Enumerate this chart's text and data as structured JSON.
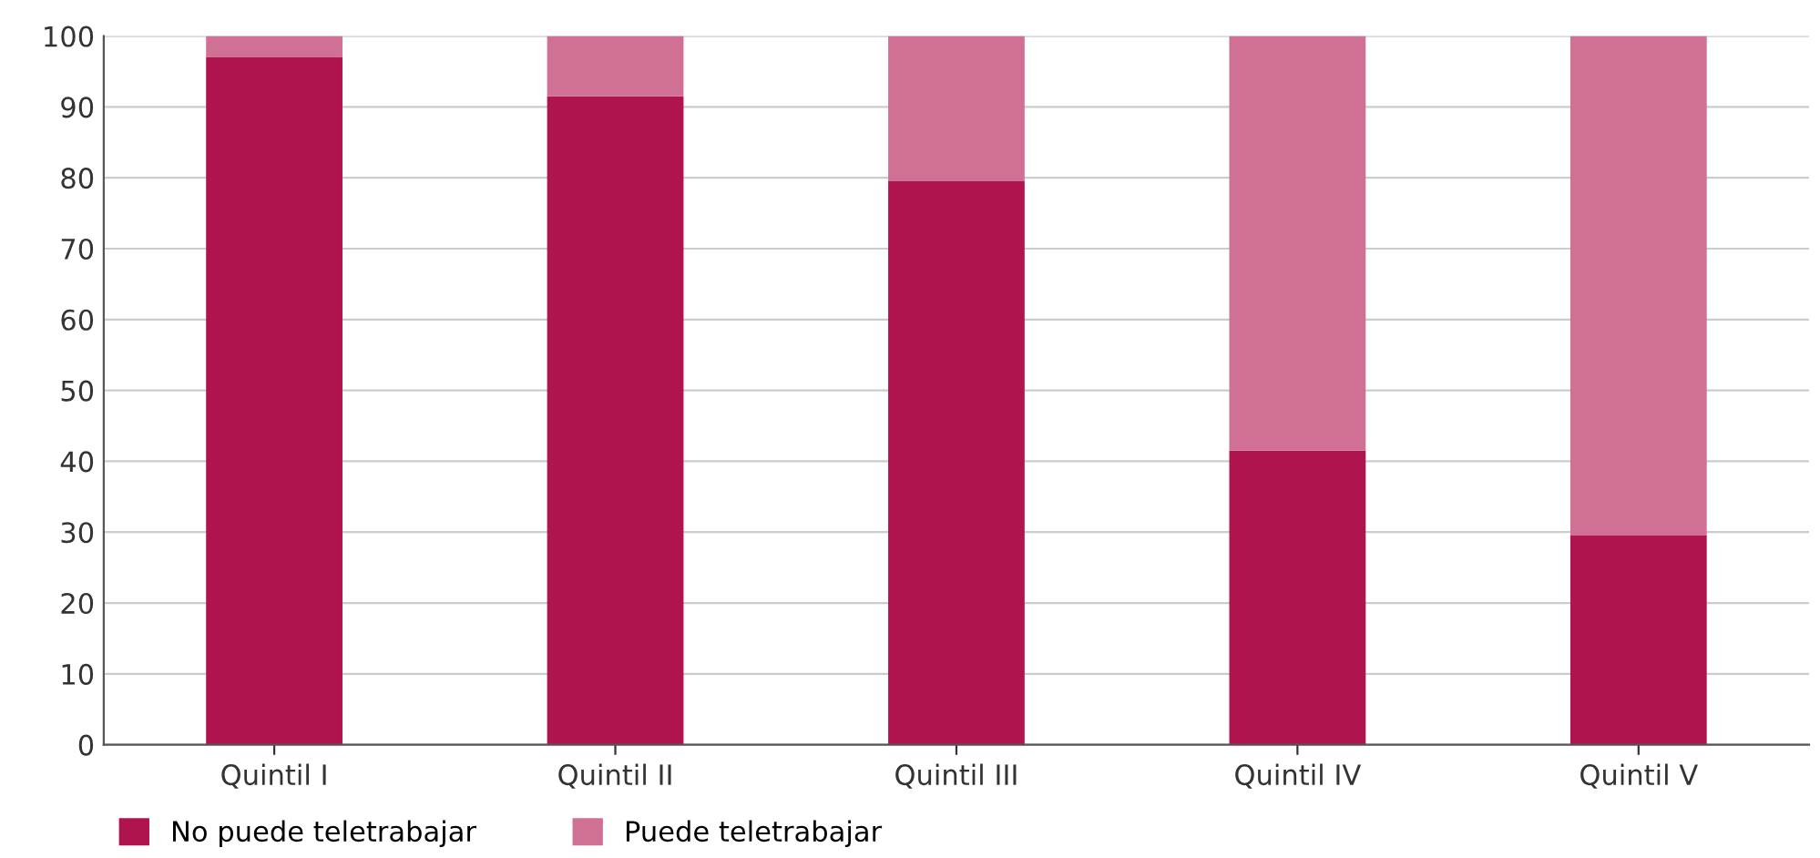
{
  "chart_data": {
    "type": "bar",
    "stacked": true,
    "categories": [
      "Quintil I",
      "Quintil II",
      "Quintil III",
      "Quintil IV",
      "Quintil V"
    ],
    "series": [
      {
        "name": "No puede teletrabajar",
        "color": "#b0144f",
        "values": [
          97,
          91.5,
          79.5,
          41.5,
          29.5
        ]
      },
      {
        "name": "Puede teletrabajar",
        "color": "#d07095",
        "values": [
          3,
          8.5,
          20.5,
          58.5,
          70.5
        ]
      }
    ],
    "ylim": [
      0,
      100
    ],
    "yticks": [
      0,
      10,
      20,
      30,
      40,
      50,
      60,
      70,
      80,
      90,
      100
    ],
    "grid": "y",
    "legend": "bottom left"
  }
}
